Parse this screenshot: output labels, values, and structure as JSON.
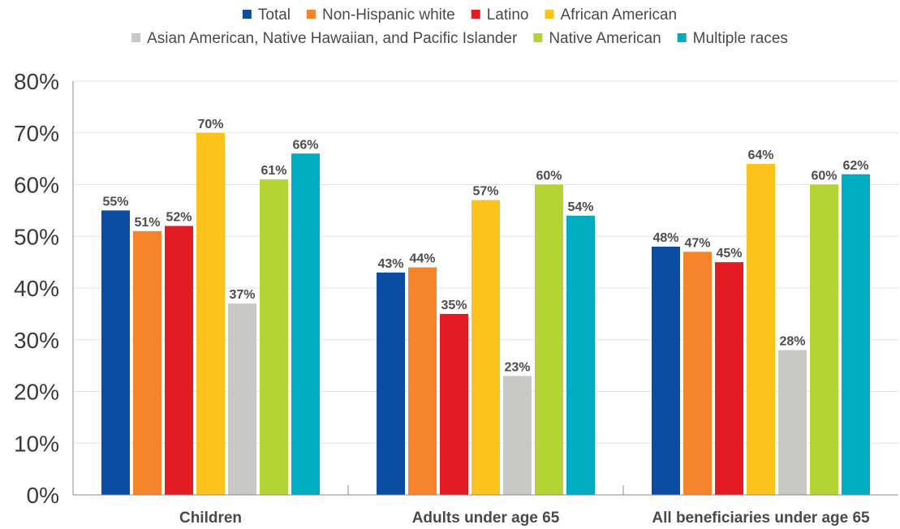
{
  "chart_data": {
    "type": "bar",
    "categories": [
      "Children",
      "Adults under age 65",
      "All beneficiaries under age 65"
    ],
    "series": [
      {
        "name": "Total",
        "color": "#0b4da2",
        "values": [
          55,
          43,
          48
        ],
        "labels": [
          "55%",
          "43%",
          "48%"
        ]
      },
      {
        "name": "Non-Hispanic white",
        "color": "#f5842b",
        "values": [
          51,
          44,
          47
        ],
        "labels": [
          "51%",
          "44%",
          "47%"
        ]
      },
      {
        "name": "Latino",
        "color": "#e31c23",
        "values": [
          52,
          35,
          45
        ],
        "labels": [
          "52%",
          "35%",
          "45%"
        ]
      },
      {
        "name": "African American",
        "color": "#fcc31c",
        "values": [
          70,
          57,
          64
        ],
        "labels": [
          "70%",
          "57%",
          "64%"
        ]
      },
      {
        "name": "Asian American, Native Hawaiian, and Pacific Islander",
        "color": "#c8c8c6",
        "values": [
          37,
          23,
          28
        ],
        "labels": [
          "37%",
          "23%",
          "28%"
        ]
      },
      {
        "name": "Native American",
        "color": "#b4d335",
        "values": [
          61,
          60,
          60
        ],
        "labels": [
          "61%",
          "60%",
          "60%"
        ]
      },
      {
        "name": "Multiple races",
        "color": "#00acc0",
        "values": [
          66,
          54,
          62
        ],
        "labels": [
          "66%",
          "54%",
          "62%"
        ]
      }
    ],
    "ylim": [
      0,
      80
    ],
    "yticks": [
      0,
      10,
      20,
      30,
      40,
      50,
      60,
      70,
      80
    ],
    "ytick_labels": [
      "0%",
      "10%",
      "20%",
      "30%",
      "40%",
      "50%",
      "60%",
      "70%",
      "80%"
    ],
    "grid": true,
    "legend_position": "top"
  }
}
